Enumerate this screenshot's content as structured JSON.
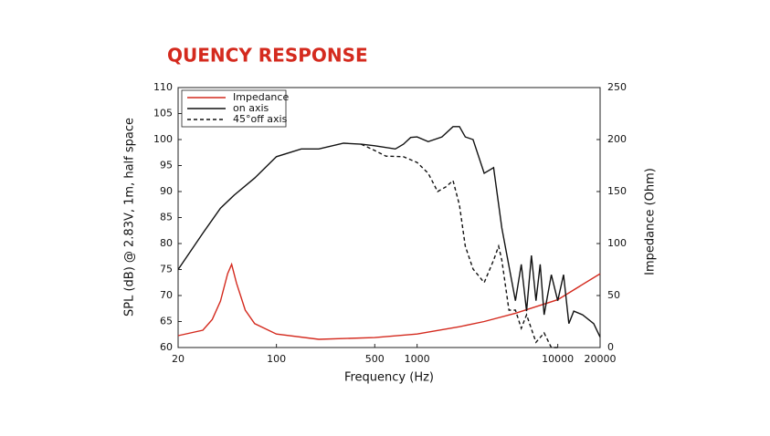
{
  "chart_data": {
    "type": "line",
    "title": "QUENCY RESPONSE",
    "xlabel": "Frequency (Hz)",
    "ylabel": "SPL (dB) @ 2.83V, 1m, half space",
    "y2label": "Impedance (Ohm)",
    "xscale": "log",
    "xlim": [
      20,
      20000
    ],
    "xticks": [
      20,
      100,
      500,
      1000,
      10000,
      20000
    ],
    "ylim": [
      60,
      110
    ],
    "yticks": [
      60,
      65,
      70,
      75,
      80,
      85,
      90,
      95,
      100,
      105,
      110
    ],
    "y2lim": [
      0,
      250
    ],
    "y2ticks": [
      0,
      50,
      100,
      150,
      200,
      250
    ],
    "legend": "upper left",
    "series": [
      {
        "name": "Impedance",
        "color": "#d42a1e",
        "style": "solid",
        "axis": "y2",
        "x": [
          20,
          30,
          35,
          40,
          45,
          48,
          52,
          60,
          70,
          100,
          200,
          500,
          1000,
          2000,
          3000,
          5000,
          10000,
          20000
        ],
        "values": [
          11.4,
          16.7,
          27,
          44.7,
          71,
          80,
          62,
          36,
          23,
          13,
          7.9,
          9.6,
          13,
          20,
          25,
          33,
          46,
          71
        ]
      },
      {
        "name": "on axis",
        "color": "#111111",
        "style": "solid",
        "x": [
          20,
          30,
          40,
          50,
          70,
          100,
          150,
          200,
          300,
          400,
          500,
          700,
          800,
          900,
          1000,
          1200,
          1500,
          1800,
          2000,
          2200,
          2500,
          3000,
          3500,
          4000,
          5000,
          5500,
          6000,
          6500,
          7000,
          7500,
          8000,
          9000,
          10000,
          11000,
          12000,
          13000,
          15000,
          18000,
          20000
        ],
        "values": [
          75,
          82,
          86.8,
          89.3,
          92.6,
          96.7,
          98.2,
          98.2,
          99.3,
          99.1,
          98.8,
          98.2,
          99.1,
          100.4,
          100.5,
          99.6,
          100.5,
          102.5,
          102.5,
          100.5,
          100,
          93.5,
          94.6,
          83,
          69,
          76,
          67,
          77.7,
          69,
          76,
          66.3,
          74,
          69,
          74,
          64.6,
          67,
          66.3,
          64.6,
          62
        ]
      },
      {
        "name": "45°off axis",
        "color": "#111111",
        "style": "dashed",
        "x": [
          400,
          500,
          600,
          800,
          1000,
          1200,
          1400,
          1600,
          1800,
          2000,
          2200,
          2500,
          3000,
          3500,
          3800,
          4000,
          4500,
          5000,
          5500,
          6000,
          7000,
          8000,
          9000,
          10000
        ],
        "values": [
          99.1,
          97.9,
          96.8,
          96.7,
          95.6,
          93.5,
          90,
          90.9,
          92.1,
          87.4,
          79.5,
          75.1,
          72.5,
          76.8,
          79.5,
          76.8,
          67.2,
          67.2,
          63.7,
          66.3,
          61,
          62.8,
          60,
          60
        ]
      }
    ]
  }
}
